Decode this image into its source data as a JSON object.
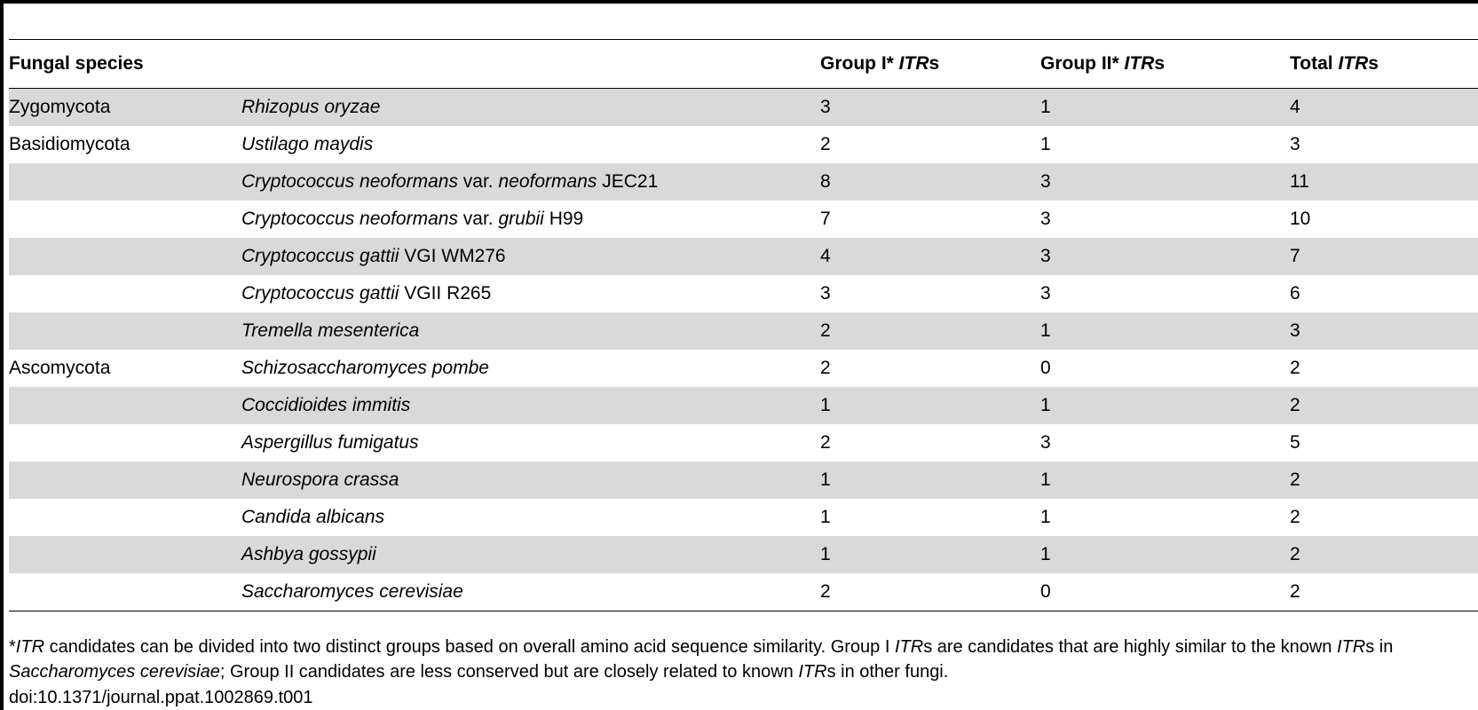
{
  "table": {
    "headers": {
      "species": "Fungal species",
      "group1_prefix": "Group I* ",
      "group1_itr": "ITR",
      "group1_suffix": "s",
      "group2_prefix": "Group II* ",
      "group2_itr": "ITR",
      "group2_suffix": "s",
      "total_prefix": "Total ",
      "total_itr": "ITR",
      "total_suffix": "s"
    },
    "rows": [
      {
        "phylum": "Zygomycota",
        "sp_a": "Rhizopus oryzae",
        "sp_b": "",
        "sp_c": "",
        "sp_d": "",
        "g1": "3",
        "g2": "1",
        "total": "4"
      },
      {
        "phylum": "Basidiomycota",
        "sp_a": "Ustilago maydis",
        "sp_b": "",
        "sp_c": "",
        "sp_d": "",
        "g1": "2",
        "g2": "1",
        "total": "3"
      },
      {
        "phylum": "",
        "sp_a": "Cryptococcus neoformans",
        "sp_b": " var. ",
        "sp_c": "neoformans",
        "sp_d": " JEC21",
        "g1": "8",
        "g2": "3",
        "total": "11"
      },
      {
        "phylum": "",
        "sp_a": "Cryptococcus neoformans",
        "sp_b": " var. ",
        "sp_c": "grubii",
        "sp_d": " H99",
        "g1": "7",
        "g2": "3",
        "total": "10"
      },
      {
        "phylum": "",
        "sp_a": "Cryptococcus gattii",
        "sp_b": " VGI WM276",
        "sp_c": "",
        "sp_d": "",
        "g1": "4",
        "g2": "3",
        "total": "7"
      },
      {
        "phylum": "",
        "sp_a": "Cryptococcus gattii",
        "sp_b": " VGII R265",
        "sp_c": "",
        "sp_d": "",
        "g1": "3",
        "g2": "3",
        "total": "6"
      },
      {
        "phylum": "",
        "sp_a": "Tremella mesenterica",
        "sp_b": "",
        "sp_c": "",
        "sp_d": "",
        "g1": "2",
        "g2": "1",
        "total": "3"
      },
      {
        "phylum": "Ascomycota",
        "sp_a": "Schizosaccharomyces pombe",
        "sp_b": "",
        "sp_c": "",
        "sp_d": "",
        "g1": "2",
        "g2": "0",
        "total": "2"
      },
      {
        "phylum": "",
        "sp_a": "Coccidioides immitis",
        "sp_b": "",
        "sp_c": "",
        "sp_d": "",
        "g1": "1",
        "g2": "1",
        "total": "2"
      },
      {
        "phylum": "",
        "sp_a": "Aspergillus fumigatus",
        "sp_b": "",
        "sp_c": "",
        "sp_d": "",
        "g1": "2",
        "g2": "3",
        "total": "5"
      },
      {
        "phylum": "",
        "sp_a": "Neurospora crassa",
        "sp_b": "",
        "sp_c": "",
        "sp_d": "",
        "g1": "1",
        "g2": "1",
        "total": "2"
      },
      {
        "phylum": "",
        "sp_a": "Candida albicans",
        "sp_b": "",
        "sp_c": "",
        "sp_d": "",
        "g1": "1",
        "g2": "1",
        "total": "2"
      },
      {
        "phylum": "",
        "sp_a": "Ashbya gossypii",
        "sp_b": "",
        "sp_c": "",
        "sp_d": "",
        "g1": "1",
        "g2": "1",
        "total": "2"
      },
      {
        "phylum": "",
        "sp_a": "Saccharomyces cerevisiae",
        "sp_b": "",
        "sp_c": "",
        "sp_d": "",
        "g1": "2",
        "g2": "0",
        "total": "2"
      }
    ]
  },
  "footnote": {
    "p1": "*",
    "p2": "ITR",
    "p3": " candidates can be divided into two distinct groups based on overall amino acid sequence similarity. Group I ",
    "p4": "ITR",
    "p5": "s are candidates that are highly similar to the known ",
    "p6": "ITR",
    "p7": "s in ",
    "p8": "Saccharomyces cerevisiae",
    "p9": "; Group II candidates are less conserved but are closely related to known ",
    "p10": "ITR",
    "p11": "s in other fungi."
  },
  "doi": "doi:10.1371/journal.ppat.1002869.t001"
}
